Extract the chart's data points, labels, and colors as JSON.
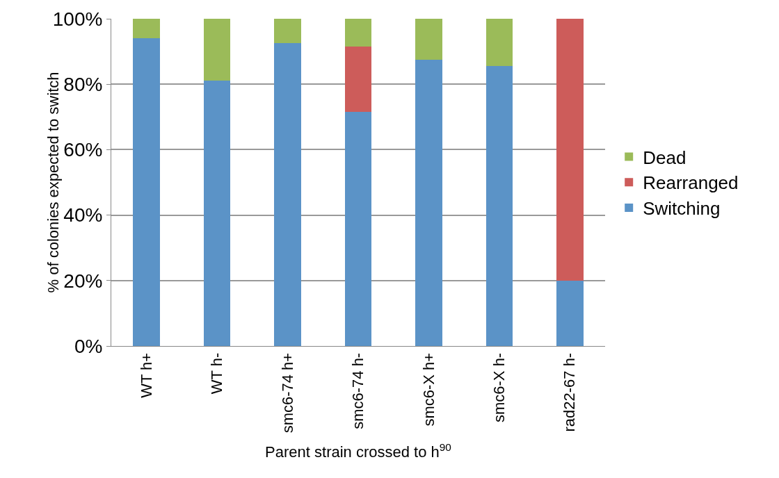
{
  "chart_data": {
    "type": "bar",
    "stacked": true,
    "xlabel": "Parent strain crossed to h$^{90}$",
    "ylabel": "% of colonies expected to switch",
    "categories": [
      "WT h+",
      "WT h-",
      "smc6-74 h+",
      "smc6-74 h-",
      "smc6-X h+",
      "smc6-X h-",
      "rad22-67 h-"
    ],
    "series": [
      {
        "name": "Switching",
        "color": "#5b93c7",
        "values": [
          94,
          81,
          92.5,
          71.5,
          87.5,
          85.5,
          20
        ]
      },
      {
        "name": "Rearranged",
        "color": "#cd5c5a",
        "values": [
          0,
          0,
          0,
          20,
          0,
          0,
          80
        ]
      },
      {
        "name": "Dead",
        "color": "#9bbb59",
        "values": [
          6,
          19,
          7.5,
          8.5,
          12.5,
          14.5,
          0
        ]
      }
    ],
    "ylim": [
      0,
      100
    ],
    "yticks": [
      {
        "value": 0,
        "label": "0%"
      },
      {
        "value": 20,
        "label": "20%"
      },
      {
        "value": 40,
        "label": "40%"
      },
      {
        "value": 60,
        "label": "60%"
      },
      {
        "value": 80,
        "label": "80%"
      },
      {
        "value": 100,
        "label": "100%"
      }
    ],
    "grid": "y",
    "legend": "right"
  }
}
